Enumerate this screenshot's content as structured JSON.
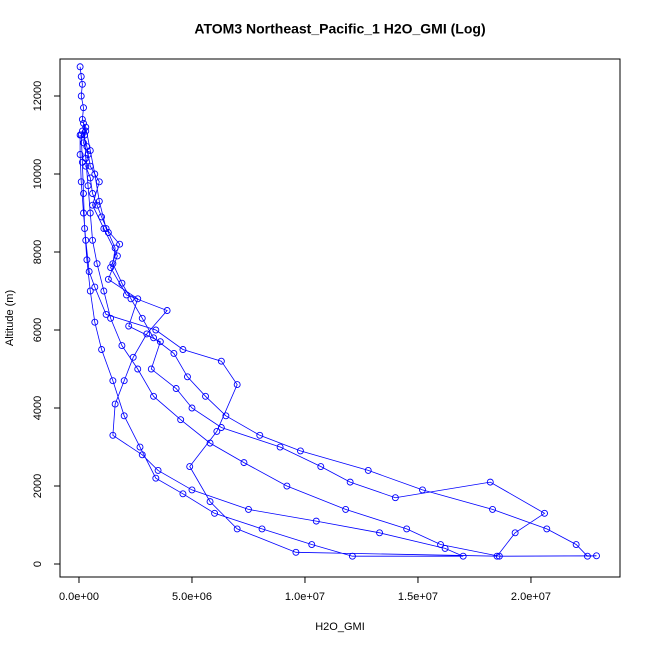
{
  "chart_data": {
    "type": "line",
    "title": "ATOM3 Northeast_Pacific_1 H2O_GMI (Log)",
    "x_label": "H2O_GMI",
    "y_label": "Altitude (m)",
    "color": "#0000ff",
    "markers": true,
    "xlim": [
      -840000.0,
      23940000.0
    ],
    "ylim": [
      -333,
      12949
    ],
    "xticks": [
      {
        "value": 0,
        "label": "0.0e+00"
      },
      {
        "value": 5000000.0,
        "label": "5.0e+06"
      },
      {
        "value": 10000000.0,
        "label": "1.0e+07"
      },
      {
        "value": 15000000.0,
        "label": "1.5e+07"
      },
      {
        "value": 20000000.0,
        "label": "2.0e+07"
      }
    ],
    "yticks": [
      0,
      2000,
      4000,
      6000,
      8000,
      10000,
      12000
    ],
    "x": [
      50000.0,
      100000.0,
      150000.0,
      100000.0,
      200000.0,
      150000.0,
      300000.0,
      200000.0,
      400000.0,
      300000.0,
      500000.0,
      600000.0,
      800000.0,
      1000000.0,
      1300000.0,
      1600000.0,
      1500000.0,
      1900000.0,
      2300000.0,
      2800000.0,
      3300000.0,
      4200000.0,
      4800000.0,
      5600000.0,
      6500000.0,
      8000000.0,
      9800000.0,
      12800000.0,
      15200000.0,
      18300000.0,
      20700000.0,
      22000000.0,
      22500000.0,
      22900000.0,
      18600000.0,
      16000000.0,
      14500000.0,
      11800000.0,
      9200000.0,
      7300000.0,
      5800000.0,
      4500000.0,
      3300000.0,
      2600000.0,
      1900000.0,
      1400000.0,
      1100000.0,
      800000.0,
      600000.0,
      500000.0,
      400000.0,
      300000.0,
      250000.0,
      200000.0,
      300000.0,
      500000.0,
      700000.0,
      900000.0,
      1200000.0,
      1800000.0,
      1400000.0,
      2100000.0,
      3900000.0,
      3000000.0,
      2400000.0,
      2000000.0,
      1600000.0,
      1500000.0,
      2800000.0,
      3500000.0,
      5000000.0,
      7500000.0,
      10500000.0,
      13300000.0,
      16200000.0,
      17000000.0,
      12100000.0,
      10300000.0,
      8100000.0,
      6000000.0,
      4600000.0,
      3400000.0,
      2700000.0,
      2000000.0,
      1500000.0,
      1000000.0,
      700000.0,
      500000.0,
      350000.0,
      250000.0,
      200000.0,
      150000.0,
      100000.0,
      150000.0,
      350000.0,
      500000.0,
      900000.0,
      600000.0,
      1100000.0,
      1700000.0,
      1300000.0,
      2600000.0,
      2200000.0,
      3600000.0,
      3200000.0,
      4300000.0,
      5000000.0,
      6300000.0,
      8900000.0,
      10700000.0,
      12000000.0,
      14000000.0,
      18200000.0,
      20600000.0,
      19300000.0,
      18500000.0,
      9600000.0,
      7000000.0,
      5800000.0,
      4900000.0,
      6100000.0,
      7000000.0,
      6300000.0,
      4600000.0,
      3400000.0,
      1200000.0,
      700000.0,
      450000.0,
      300000.0,
      200000.0,
      100000.0,
      50000.0,
      50000.0
    ],
    "values": [
      12750,
      12500,
      12300,
      12000,
      11700,
      11400,
      11100,
      10800,
      10500,
      10200,
      9900,
      9500,
      9200,
      8900,
      8500,
      8100,
      7700,
      7200,
      6800,
      6300,
      5800,
      5400,
      4800,
      4300,
      3800,
      3300,
      2900,
      2400,
      1900,
      1400,
      900,
      500,
      200,
      210,
      200,
      500,
      900,
      1400,
      2000,
      2600,
      3100,
      3700,
      4300,
      5000,
      5600,
      6300,
      7000,
      7700,
      8300,
      9000,
      9700,
      10400,
      11000,
      11300,
      11200,
      10600,
      10000,
      9300,
      8600,
      8200,
      7600,
      6900,
      6500,
      5900,
      5300,
      4700,
      4100,
      3300,
      2800,
      2400,
      1900,
      1400,
      1100,
      800,
      400,
      200,
      200,
      500,
      900,
      1300,
      1800,
      2200,
      3000,
      3800,
      4700,
      5500,
      6200,
      7000,
      7800,
      8600,
      9500,
      10300,
      11000,
      11100,
      10700,
      10200,
      9800,
      9200,
      8600,
      7900,
      7300,
      6800,
      6100,
      5700,
      5000,
      4500,
      4000,
      3500,
      3000,
      2500,
      2100,
      1700,
      2100,
      1300,
      800,
      200,
      300,
      900,
      1600,
      2500,
      3400,
      4600,
      5200,
      5500,
      6000,
      6400,
      7100,
      7500,
      8300,
      9000,
      9800,
      10500,
      11000
    ]
  }
}
